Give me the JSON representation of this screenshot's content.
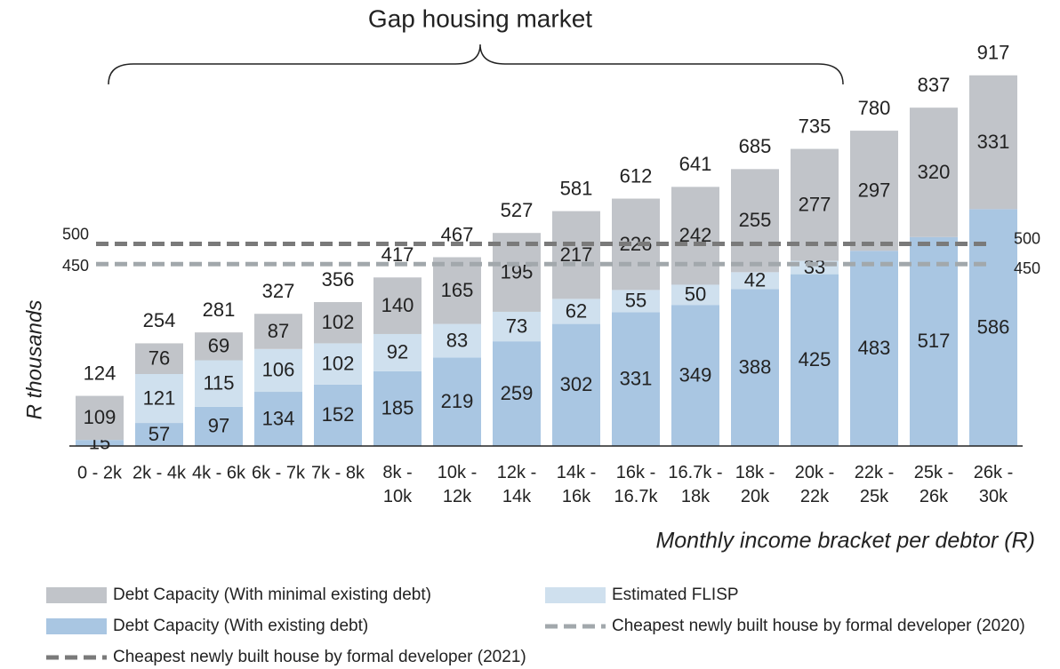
{
  "chart_data": {
    "type": "stacked_bar",
    "annotation": "Gap housing market",
    "ylabel": "R thousands",
    "xlabel": "Monthly income bracket per debtor (R)",
    "categories": [
      "0 - 2k",
      "2k - 4k",
      "4k - 6k",
      "6k - 7k",
      "7k - 8k",
      "8k - 10k",
      "10k - 12k",
      "12k - 14k",
      "14k - 16k",
      "16k - 16.7k",
      "16.7k - 18k",
      "18k - 20k",
      "20k - 22k",
      "22k - 25k",
      "25k - 26k",
      "26k - 30k"
    ],
    "series": [
      {
        "name": "Debt Capacity (With existing debt)",
        "color": "#a9c6e2",
        "values": [
          15,
          57,
          97,
          134,
          152,
          185,
          219,
          259,
          302,
          331,
          349,
          388,
          425,
          483,
          517,
          586
        ]
      },
      {
        "name": "Estimated FLISP",
        "color": "#cfe0ee",
        "values": [
          null,
          121,
          115,
          106,
          102,
          92,
          83,
          73,
          62,
          55,
          50,
          42,
          33,
          null,
          null,
          null
        ]
      },
      {
        "name": "Debt Capacity (With minimal existing debt)",
        "color": "#c1c4c9",
        "values": [
          109,
          76,
          69,
          87,
          102,
          140,
          165,
          195,
          217,
          226,
          242,
          255,
          277,
          297,
          320,
          331
        ]
      }
    ],
    "totals": [
      124,
      254,
      281,
      327,
      356,
      417,
      467,
      527,
      581,
      612,
      641,
      685,
      735,
      780,
      837,
      917
    ],
    "reference_lines": [
      {
        "name": "Cheapest newly built house by formal developer (2021)",
        "value": 500,
        "color": "#7a7a7a"
      },
      {
        "name": "Cheapest newly built house by formal developer (2020)",
        "value": 450,
        "color": "#a2a8ac"
      }
    ],
    "ylim": [
      0,
      1000
    ]
  }
}
